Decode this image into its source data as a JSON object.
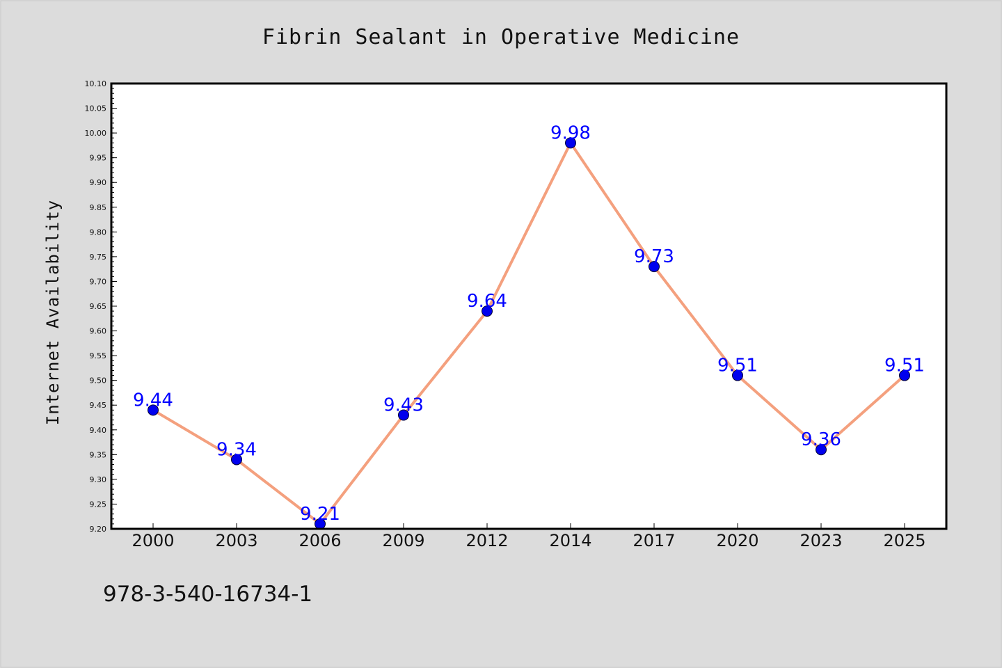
{
  "chart_data": {
    "type": "line",
    "title": "Fibrin Sealant in Operative Medicine",
    "xlabel": "",
    "ylabel": "Internet Availability",
    "categories": [
      "2000",
      "2003",
      "2006",
      "2009",
      "2012",
      "2014",
      "2017",
      "2020",
      "2023",
      "2025"
    ],
    "series": [
      {
        "values": [
          9.44,
          9.34,
          9.21,
          9.43,
          9.64,
          9.98,
          9.73,
          9.51,
          9.36,
          9.51
        ]
      }
    ],
    "data_labels": [
      "9.44",
      "9.34",
      "9.21",
      "9.43",
      "9.64",
      "9.98",
      "9.73",
      "9.51",
      "9.36",
      "9.51"
    ],
    "ylim": [
      9.2,
      10.1
    ],
    "yticks": [
      "9.20",
      "9.25",
      "9.30",
      "9.35",
      "9.40",
      "9.45",
      "9.50",
      "9.55",
      "9.60",
      "9.65",
      "9.70",
      "9.75",
      "9.80",
      "9.85",
      "9.90",
      "9.95",
      "10.00",
      "10.05",
      "10.10"
    ],
    "grid": false,
    "legend": "none",
    "colors": {
      "line": "#f4a07e",
      "marker_fill": "#0000ee",
      "marker_edge": "#000033",
      "data_label": "#0000ff",
      "background": "#dcdcdc",
      "plot_background": "#ffffff"
    }
  },
  "footnote": "978-3-540-16734-1"
}
